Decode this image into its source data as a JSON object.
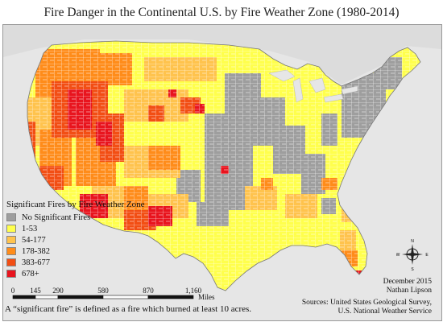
{
  "title": "Fire Danger in the Continental U.S. by Fire Weather Zone (1980-2014)",
  "legend": {
    "title": "Significant Fires by Fire Weather Zone",
    "items": [
      {
        "label": "No Significant Fires",
        "color": "#9e9e9e"
      },
      {
        "label": "1-53",
        "color": "#ffff4d"
      },
      {
        "label": "54-177",
        "color": "#ffc34d"
      },
      {
        "label": "178-382",
        "color": "#ff8c1a"
      },
      {
        "label": "383-677",
        "color": "#f24e14"
      },
      {
        "label": "678+",
        "color": "#e8141e"
      }
    ]
  },
  "scale": {
    "ticks": [
      "0",
      "145",
      "290",
      "580",
      "870",
      "1,160"
    ],
    "unit": "Miles"
  },
  "footnote": "A “significant fire” is defined as a fire which burned at least 10 acres.",
  "credit": {
    "date": "December 2015",
    "author": "Nathan Lipson",
    "sources_line1": "Sources: United States Geological Survey,",
    "sources_line2": "U.S. National Weather Service"
  },
  "compass": {
    "n": "N",
    "s": "S",
    "e": "E",
    "w": "W"
  },
  "colors": {
    "background": "#e6e6e6",
    "border": "#ffffff"
  }
}
